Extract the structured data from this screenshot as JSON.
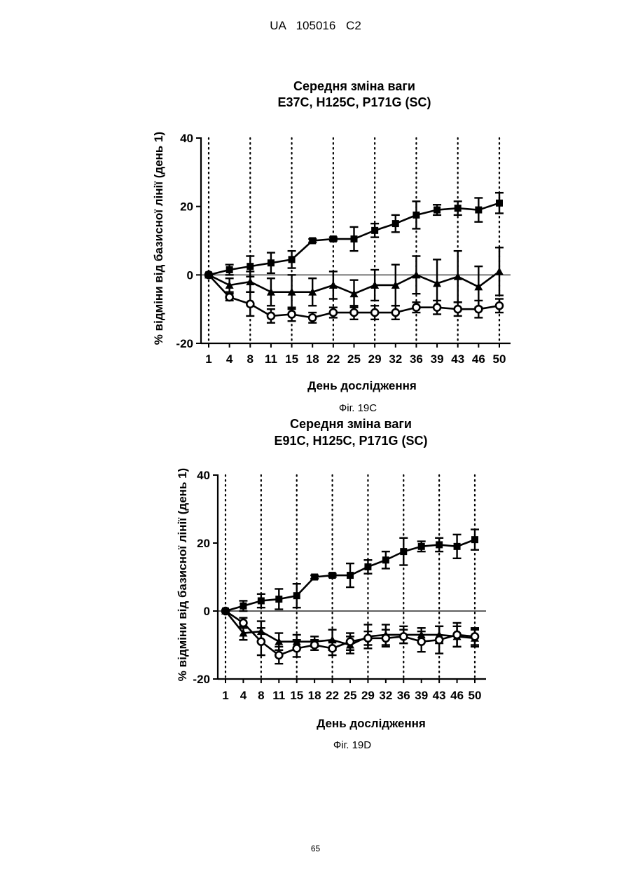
{
  "header": {
    "text": "UA   105016   C2"
  },
  "page_number": "65",
  "chart_data": [
    {
      "type": "line",
      "title": "Середня зміна ваги",
      "subtitle": "E37C, H125C, P171G (SC)",
      "xlabel": "День дослідження",
      "ylabel": "% відміни від базисної лінії (день 1)",
      "caption": "Фіг. 19С",
      "x": [
        1,
        4,
        8,
        11,
        15,
        18,
        22,
        25,
        29,
        32,
        36,
        39,
        43,
        46,
        50
      ],
      "xticks": [
        "1",
        "4",
        "8",
        "11",
        "15",
        "18",
        "22",
        "25",
        "29",
        "32",
        "36",
        "39",
        "43",
        "46",
        "50"
      ],
      "ylim": [
        -20,
        40
      ],
      "yticks": [
        "-20",
        "0",
        "20",
        "40"
      ],
      "dotted_gridlines_at_x": [
        1,
        8,
        15,
        22,
        29,
        36,
        43,
        50
      ],
      "series": [
        {
          "marker": "square",
          "values": [
            0,
            1.5,
            2.5,
            3.5,
            4.5,
            10,
            10.5,
            10.5,
            13,
            15,
            17.5,
            19,
            19.5,
            19,
            21
          ],
          "errors": [
            0,
            1.5,
            3,
            3,
            2.5,
            0.5,
            0.5,
            3.5,
            2,
            2.5,
            4,
            1.5,
            2,
            3.5,
            3
          ]
        },
        {
          "marker": "triangle",
          "values": [
            0,
            -3,
            -2,
            -5,
            -5,
            -5,
            -3,
            -5.5,
            -3,
            -3,
            0,
            -2.5,
            -0.5,
            -3.5,
            1
          ],
          "errors": [
            0,
            2,
            3,
            4,
            5,
            4,
            4,
            4,
            4.5,
            6,
            5.5,
            7,
            7.5,
            6,
            7
          ]
        },
        {
          "marker": "circle-open",
          "values": [
            0,
            -6.5,
            -8.5,
            -12,
            -11.5,
            -12.5,
            -11,
            -11,
            -11,
            -11,
            -9.5,
            -9.5,
            -10,
            -10,
            -9
          ],
          "errors": [
            0,
            1,
            3.5,
            2,
            2,
            1.5,
            1.5,
            2,
            2,
            2,
            1.5,
            2,
            2,
            2.5,
            2
          ]
        }
      ]
    },
    {
      "type": "line",
      "title": "Середня зміна ваги",
      "subtitle": "E91C, H125C, P171G (SC)",
      "xlabel": "День дослідження",
      "ylabel": "% відміни від базисної лінії (день 1)",
      "caption": "Фіг. 19D",
      "x": [
        1,
        4,
        8,
        11,
        15,
        18,
        22,
        25,
        29,
        32,
        36,
        39,
        43,
        46,
        50
      ],
      "xticks": [
        "1",
        "4",
        "8",
        "11",
        "15",
        "18",
        "22",
        "25",
        "29",
        "32",
        "36",
        "39",
        "43",
        "46",
        "50"
      ],
      "ylim": [
        -20,
        40
      ],
      "yticks": [
        "-20",
        "0",
        "20",
        "40"
      ],
      "dotted_gridlines_at_x": [
        1,
        8,
        15,
        22,
        29,
        36,
        43,
        50
      ],
      "series": [
        {
          "marker": "square",
          "values": [
            0,
            1.5,
            3,
            3.5,
            4.5,
            10,
            10.5,
            10.5,
            13,
            15,
            17.5,
            19,
            19.5,
            19,
            21
          ],
          "errors": [
            0,
            1.5,
            2,
            3,
            3.5,
            0.5,
            0.5,
            3.5,
            2,
            2.5,
            4,
            1.5,
            2,
            3.5,
            3
          ]
        },
        {
          "marker": "triangle",
          "values": [
            0,
            -6.5,
            -6,
            -9,
            -9,
            -9,
            -8.5,
            -10,
            -7.5,
            -7,
            -7,
            -7,
            -7,
            -7.5,
            -8
          ],
          "errors": [
            0,
            2,
            3,
            2.5,
            2,
            1.5,
            3,
            2.5,
            3.5,
            3,
            2.5,
            2,
            2.5,
            3,
            2.5
          ]
        },
        {
          "marker": "circle-open",
          "values": [
            0,
            -3.5,
            -9,
            -13,
            -11,
            -10,
            -11,
            -9,
            -8,
            -8,
            -7.5,
            -9,
            -8.5,
            -7,
            -7.5
          ],
          "errors": [
            0,
            1.5,
            4,
            2.5,
            2.5,
            1.5,
            2,
            2.5,
            2,
            2.5,
            2,
            3,
            4,
            3.5,
            2.5
          ]
        }
      ]
    }
  ]
}
